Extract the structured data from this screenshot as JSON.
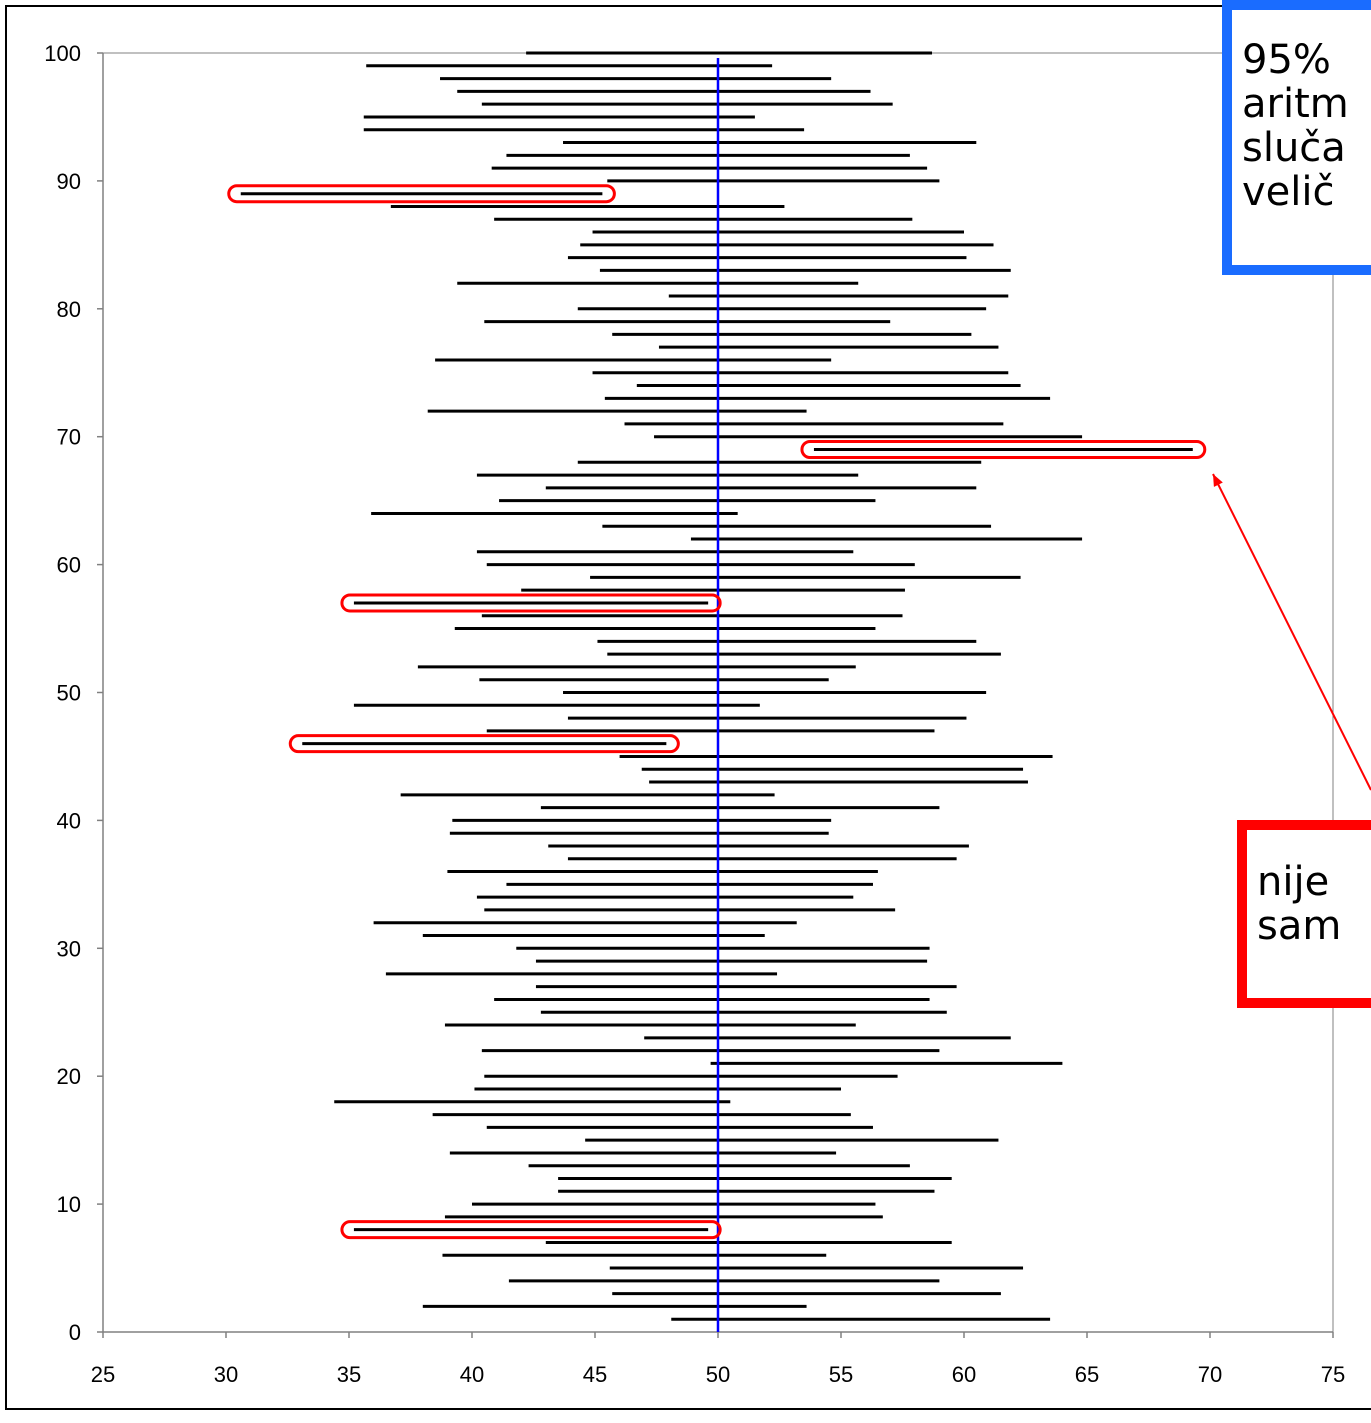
{
  "chart_data": {
    "type": "interval",
    "title": "",
    "xlabel": "",
    "ylabel": "",
    "xlim": [
      25,
      75
    ],
    "ylim": [
      0,
      100
    ],
    "x_ticks": [
      25,
      30,
      35,
      40,
      45,
      50,
      55,
      60,
      65,
      70,
      75
    ],
    "y_ticks": [
      0,
      10,
      20,
      30,
      40,
      50,
      60,
      70,
      80,
      90,
      100
    ],
    "reference_line": {
      "x": 50,
      "color": "#0000ff"
    },
    "interval_color": "#000000",
    "highlight_color": "#ff0000",
    "highlighted_samples": [
      8,
      46,
      57,
      69,
      89
    ],
    "intervals": [
      [
        1,
        48.1,
        63.5
      ],
      [
        2,
        38.0,
        53.6
      ],
      [
        3,
        45.7,
        61.5
      ],
      [
        4,
        41.5,
        59.0
      ],
      [
        5,
        45.6,
        62.4
      ],
      [
        6,
        38.8,
        54.4
      ],
      [
        7,
        43.0,
        59.5
      ],
      [
        8,
        35.2,
        49.6
      ],
      [
        9,
        38.9,
        56.7
      ],
      [
        10,
        40.0,
        56.4
      ],
      [
        11,
        43.5,
        58.8
      ],
      [
        12,
        43.5,
        59.5
      ],
      [
        13,
        42.3,
        57.8
      ],
      [
        14,
        39.1,
        54.8
      ],
      [
        15,
        44.6,
        61.4
      ],
      [
        16,
        40.6,
        56.3
      ],
      [
        17,
        38.4,
        55.4
      ],
      [
        18,
        34.4,
        50.5
      ],
      [
        19,
        40.1,
        55.0
      ],
      [
        20,
        40.5,
        57.3
      ],
      [
        21,
        49.7,
        64.0
      ],
      [
        22,
        40.4,
        59.0
      ],
      [
        23,
        47.0,
        61.9
      ],
      [
        24,
        38.9,
        55.6
      ],
      [
        25,
        42.8,
        59.3
      ],
      [
        26,
        40.9,
        58.6
      ],
      [
        27,
        42.6,
        59.7
      ],
      [
        28,
        36.5,
        52.4
      ],
      [
        29,
        42.6,
        58.5
      ],
      [
        30,
        41.8,
        58.6
      ],
      [
        31,
        38.0,
        51.9
      ],
      [
        32,
        36.0,
        53.2
      ],
      [
        33,
        40.5,
        57.2
      ],
      [
        34,
        40.2,
        55.5
      ],
      [
        35,
        41.4,
        56.3
      ],
      [
        36,
        39.0,
        56.5
      ],
      [
        37,
        43.9,
        59.7
      ],
      [
        38,
        43.1,
        60.2
      ],
      [
        39,
        39.1,
        54.5
      ],
      [
        40,
        39.2,
        54.6
      ],
      [
        41,
        42.8,
        59.0
      ],
      [
        42,
        37.1,
        52.3
      ],
      [
        43,
        47.2,
        62.6
      ],
      [
        44,
        46.9,
        62.4
      ],
      [
        45,
        46.0,
        63.6
      ],
      [
        46,
        33.1,
        47.9
      ],
      [
        47,
        40.6,
        58.8
      ],
      [
        48,
        43.9,
        60.1
      ],
      [
        49,
        35.2,
        51.7
      ],
      [
        50,
        43.7,
        60.9
      ],
      [
        51,
        40.3,
        54.5
      ],
      [
        52,
        37.8,
        55.6
      ],
      [
        53,
        45.5,
        61.5
      ],
      [
        54,
        45.1,
        60.5
      ],
      [
        55,
        39.3,
        56.4
      ],
      [
        56,
        40.4,
        57.5
      ],
      [
        57,
        35.2,
        49.6
      ],
      [
        58,
        42.0,
        57.6
      ],
      [
        59,
        44.8,
        62.3
      ],
      [
        60,
        40.6,
        58.0
      ],
      [
        61,
        40.2,
        55.5
      ],
      [
        62,
        48.9,
        64.8
      ],
      [
        63,
        45.3,
        61.1
      ],
      [
        64,
        35.9,
        50.8
      ],
      [
        65,
        41.1,
        56.4
      ],
      [
        66,
        43.0,
        60.5
      ],
      [
        67,
        40.2,
        55.7
      ],
      [
        68,
        44.3,
        60.7
      ],
      [
        69,
        53.9,
        69.3
      ],
      [
        70,
        47.4,
        64.8
      ],
      [
        71,
        46.2,
        61.6
      ],
      [
        72,
        38.2,
        53.6
      ],
      [
        73,
        45.4,
        63.5
      ],
      [
        74,
        46.7,
        62.3
      ],
      [
        75,
        44.9,
        61.8
      ],
      [
        76,
        38.5,
        54.6
      ],
      [
        77,
        47.6,
        61.4
      ],
      [
        78,
        45.7,
        60.3
      ],
      [
        79,
        40.5,
        57.0
      ],
      [
        80,
        44.3,
        60.9
      ],
      [
        81,
        48.0,
        61.8
      ],
      [
        82,
        39.4,
        55.7
      ],
      [
        83,
        45.2,
        61.9
      ],
      [
        84,
        43.9,
        60.1
      ],
      [
        85,
        44.4,
        61.2
      ],
      [
        86,
        44.9,
        60.0
      ],
      [
        87,
        40.9,
        57.9
      ],
      [
        88,
        36.7,
        52.7
      ],
      [
        89,
        30.6,
        45.3
      ],
      [
        90,
        45.5,
        59.0
      ],
      [
        91,
        40.8,
        58.5
      ],
      [
        92,
        41.4,
        57.8
      ],
      [
        93,
        43.7,
        60.5
      ],
      [
        94,
        35.6,
        53.5
      ],
      [
        95,
        35.6,
        51.5
      ],
      [
        96,
        40.4,
        57.1
      ],
      [
        97,
        39.4,
        56.2
      ],
      [
        98,
        38.7,
        54.6
      ],
      [
        99,
        35.7,
        52.2
      ],
      [
        100,
        42.2,
        58.7
      ]
    ]
  },
  "callouts": {
    "info_text": "95% \naritm\nsluča\nvelič",
    "miss_text": "nije\nsam",
    "info_border_color": "#1a6cff",
    "miss_border_color": "#ff0000"
  }
}
